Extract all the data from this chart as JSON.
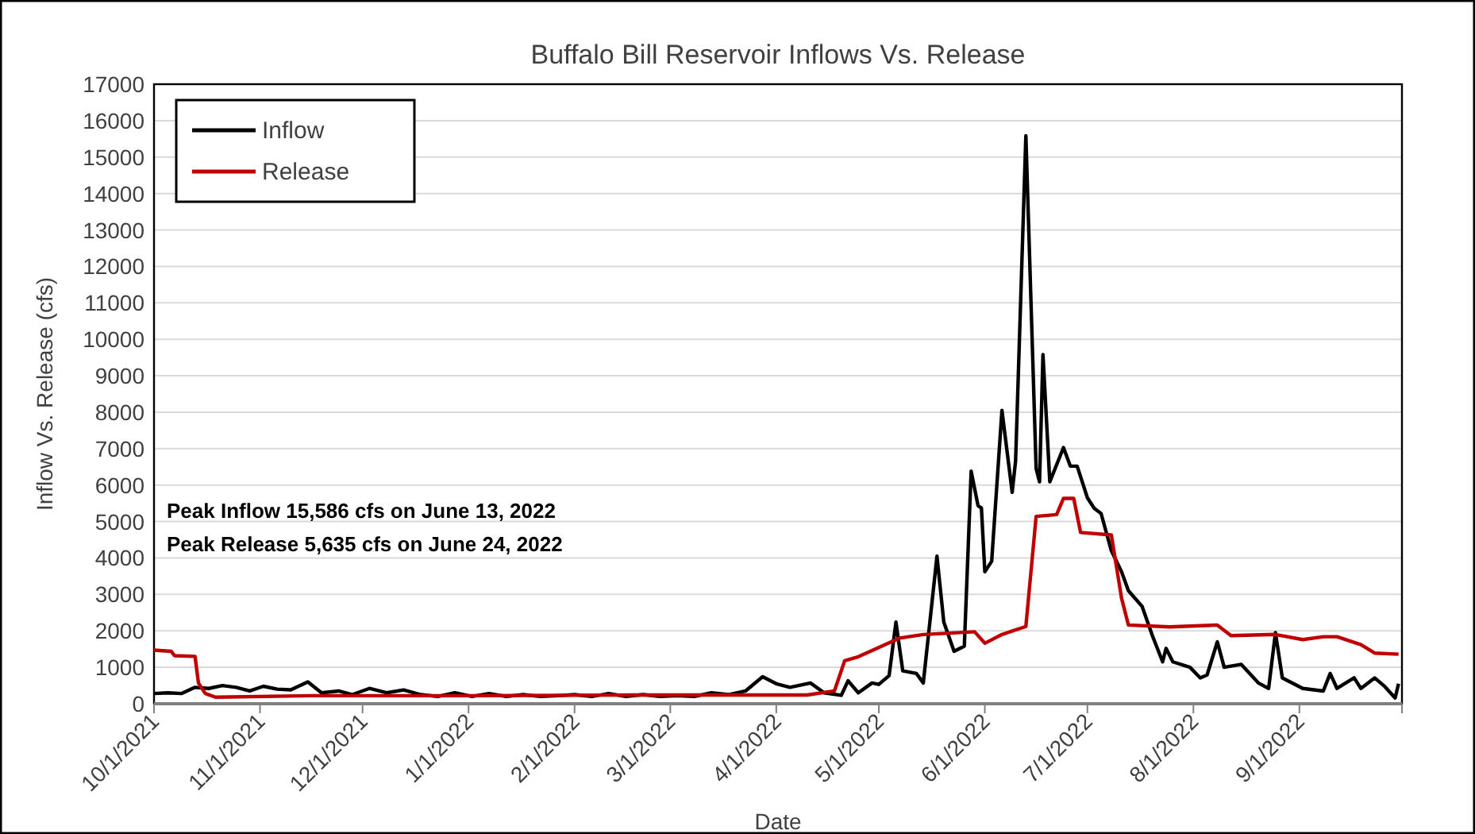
{
  "chart_data": {
    "type": "line",
    "title": "Buffalo Bill Reservoir Inflows Vs. Release",
    "xlabel": "Date",
    "ylabel": "Inflow Vs. Release (cfs)",
    "xlim": [
      "2021-10-01",
      "2022-10-01"
    ],
    "xticks": [
      {
        "value": "2021-10-01",
        "label": "10/1/2021"
      },
      {
        "value": "2021-11-01",
        "label": "11/1/2021"
      },
      {
        "value": "2021-12-01",
        "label": "12/1/2021"
      },
      {
        "value": "2022-01-01",
        "label": "1/1/2022"
      },
      {
        "value": "2022-02-01",
        "label": "2/1/2022"
      },
      {
        "value": "2022-03-01",
        "label": "3/1/2022"
      },
      {
        "value": "2022-04-01",
        "label": "4/1/2022"
      },
      {
        "value": "2022-05-01",
        "label": "5/1/2022"
      },
      {
        "value": "2022-06-01",
        "label": "6/1/2022"
      },
      {
        "value": "2022-07-01",
        "label": "7/1/2022"
      },
      {
        "value": "2022-08-01",
        "label": "8/1/2022"
      },
      {
        "value": "2022-09-01",
        "label": "9/1/2022"
      },
      {
        "value": "2022-10-01",
        "label": null
      }
    ],
    "ylim": [
      0,
      17000
    ],
    "yticks": [
      0,
      1000,
      2000,
      3000,
      4000,
      5000,
      6000,
      7000,
      8000,
      9000,
      10000,
      11000,
      12000,
      13000,
      14000,
      15000,
      16000,
      17000
    ],
    "grid": "y",
    "legend": "top left",
    "marker": "none",
    "line_style": "solid",
    "annotations": [
      "Peak Inflow 15,586 cfs on June 13, 2022",
      "Peak Release 5,635 cfs on June 24, 2022"
    ],
    "series": [
      {
        "name": "Inflow",
        "color": "#000000",
        "x": [
          "2021-10-01",
          "2021-10-05",
          "2021-10-09",
          "2021-10-13",
          "2021-10-17",
          "2021-10-21",
          "2021-10-25",
          "2021-10-29",
          "2021-11-02",
          "2021-11-06",
          "2021-11-10",
          "2021-11-15",
          "2021-11-19",
          "2021-11-24",
          "2021-11-28",
          "2021-12-03",
          "2021-12-08",
          "2021-12-13",
          "2021-12-18",
          "2021-12-23",
          "2021-12-28",
          "2022-01-02",
          "2022-01-07",
          "2022-01-12",
          "2022-01-17",
          "2022-01-22",
          "2022-01-27",
          "2022-02-01",
          "2022-02-06",
          "2022-02-11",
          "2022-02-16",
          "2022-02-21",
          "2022-02-26",
          "2022-03-03",
          "2022-03-08",
          "2022-03-13",
          "2022-03-18",
          "2022-03-23",
          "2022-03-28",
          "2022-04-01",
          "2022-04-05",
          "2022-04-11",
          "2022-04-15",
          "2022-04-20",
          "2022-04-22",
          "2022-04-25",
          "2022-04-29",
          "2022-05-01",
          "2022-05-04",
          "2022-05-06",
          "2022-05-08",
          "2022-05-12",
          "2022-05-14",
          "2022-05-18",
          "2022-05-20",
          "2022-05-23",
          "2022-05-26",
          "2022-05-28",
          "2022-05-30",
          "2022-05-31",
          "2022-06-01",
          "2022-06-03",
          "2022-06-06",
          "2022-06-09",
          "2022-06-10",
          "2022-06-13",
          "2022-06-16",
          "2022-06-17",
          "2022-06-18",
          "2022-06-20",
          "2022-06-24",
          "2022-06-26",
          "2022-06-28",
          "2022-07-01",
          "2022-07-03",
          "2022-07-05",
          "2022-07-08",
          "2022-07-11",
          "2022-07-13",
          "2022-07-17",
          "2022-07-20",
          "2022-07-23",
          "2022-07-24",
          "2022-07-26",
          "2022-07-31",
          "2022-08-03",
          "2022-08-05",
          "2022-08-08",
          "2022-08-10",
          "2022-08-15",
          "2022-08-20",
          "2022-08-23",
          "2022-08-25",
          "2022-08-27",
          "2022-09-02",
          "2022-09-08",
          "2022-09-10",
          "2022-09-12",
          "2022-09-17",
          "2022-09-19",
          "2022-09-23",
          "2022-09-26",
          "2022-09-29",
          "2022-09-30"
        ],
        "values": [
          280,
          300,
          280,
          450,
          420,
          500,
          450,
          350,
          480,
          400,
          380,
          600,
          300,
          350,
          250,
          420,
          300,
          380,
          250,
          200,
          300,
          200,
          280,
          200,
          250,
          200,
          220,
          250,
          200,
          280,
          200,
          250,
          200,
          220,
          200,
          300,
          250,
          350,
          740,
          550,
          450,
          570,
          300,
          230,
          630,
          300,
          570,
          530,
          770,
          2240,
          900,
          830,
          570,
          4050,
          2240,
          1440,
          1580,
          6380,
          5440,
          5370,
          3620,
          3910,
          8050,
          5800,
          6670,
          15586,
          6450,
          6090,
          9580,
          6090,
          7030,
          6520,
          6520,
          5650,
          5360,
          5220,
          4200,
          3620,
          3100,
          2670,
          1870,
          1150,
          1520,
          1150,
          1000,
          710,
          790,
          1700,
          1000,
          1080,
          570,
          420,
          1950,
          710,
          420,
          350,
          830,
          420,
          710,
          420,
          710,
          470,
          160,
          550
        ]
      },
      {
        "name": "Release",
        "color": "#c00000",
        "x": [
          "2021-10-01",
          "2021-10-06",
          "2021-10-07",
          "2021-10-13",
          "2021-10-14",
          "2021-10-16",
          "2021-10-19",
          "2021-11-16",
          "2022-01-02",
          "2022-02-18",
          "2022-04-10",
          "2022-04-18",
          "2022-04-21",
          "2022-04-25",
          "2022-05-07",
          "2022-05-14",
          "2022-05-29",
          "2022-06-01",
          "2022-06-06",
          "2022-06-13",
          "2022-06-16",
          "2022-06-22",
          "2022-06-24",
          "2022-06-27",
          "2022-06-29",
          "2022-07-08",
          "2022-07-11",
          "2022-07-13",
          "2022-07-25",
          "2022-08-08",
          "2022-08-12",
          "2022-08-25",
          "2022-09-02",
          "2022-09-08",
          "2022-09-12",
          "2022-09-19",
          "2022-09-23",
          "2022-09-30"
        ],
        "values": [
          1470,
          1440,
          1320,
          1300,
          570,
          280,
          180,
          220,
          220,
          240,
          240,
          350,
          1180,
          1290,
          1800,
          1900,
          1975,
          1660,
          1900,
          2120,
          5140,
          5190,
          5635,
          5635,
          4700,
          4630,
          2890,
          2160,
          2110,
          2160,
          1870,
          1900,
          1760,
          1840,
          1840,
          1620,
          1390,
          1360
        ]
      }
    ]
  }
}
